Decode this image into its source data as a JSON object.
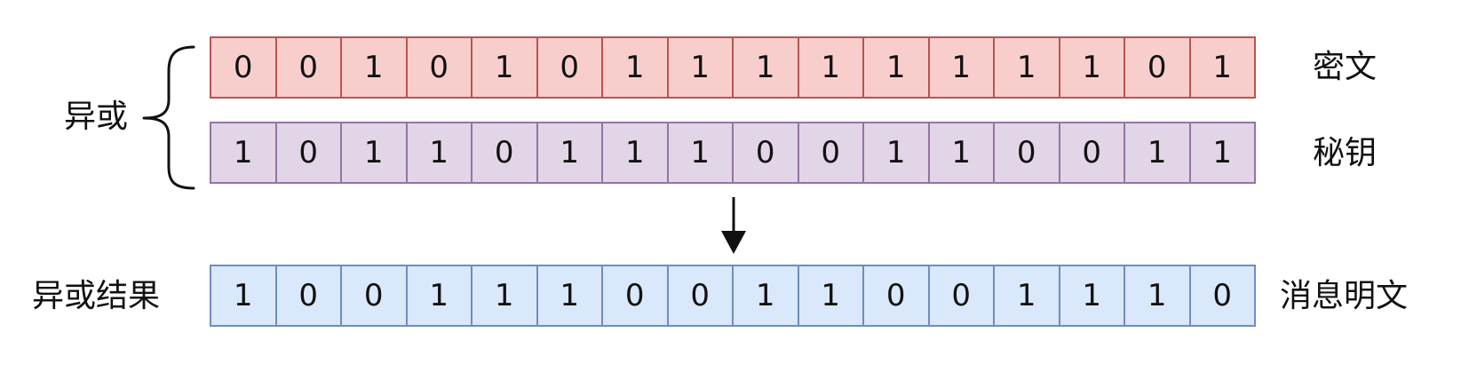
{
  "rows": {
    "cipher": {
      "label": "密文",
      "bits": [
        "0",
        "0",
        "1",
        "0",
        "1",
        "0",
        "1",
        "1",
        "1",
        "1",
        "1",
        "1",
        "1",
        "1",
        "0",
        "1"
      ]
    },
    "key": {
      "label": "秘钥",
      "bits": [
        "1",
        "0",
        "1",
        "1",
        "0",
        "1",
        "1",
        "1",
        "0",
        "0",
        "1",
        "1",
        "0",
        "0",
        "1",
        "1"
      ]
    },
    "result": {
      "label": "消息明文",
      "bits": [
        "1",
        "0",
        "0",
        "1",
        "1",
        "1",
        "0",
        "0",
        "1",
        "1",
        "0",
        "0",
        "1",
        "1",
        "1",
        "0"
      ]
    }
  },
  "operation": {
    "brace_label": "异或",
    "result_label": "异或结果"
  },
  "colors": {
    "cipher_fill": "#f8cecc",
    "cipher_stroke": "#b85450",
    "key_fill": "#e1d5e7",
    "key_stroke": "#9673a6",
    "result_fill": "#dae8fc",
    "result_stroke": "#6c8ebf"
  },
  "icons": {
    "brace": "left-curly-brace-icon",
    "arrow": "arrow-down-icon"
  }
}
